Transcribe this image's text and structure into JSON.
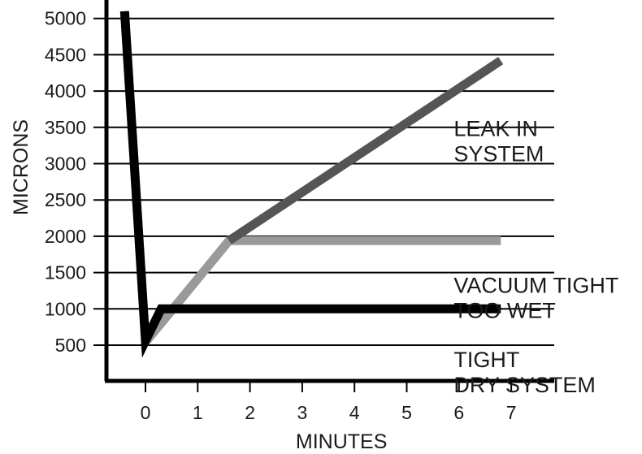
{
  "chart_data": {
    "type": "line",
    "title": "",
    "xlabel": "MINUTES",
    "ylabel": "MICRONS",
    "xlim": [
      -0.8,
      7.8
    ],
    "ylim": [
      0,
      5050
    ],
    "x_ticks": [
      0,
      1,
      2,
      3,
      4,
      5,
      6,
      7
    ],
    "y_ticks": [
      500,
      1000,
      1500,
      2000,
      2500,
      3000,
      3500,
      4000,
      4500,
      5000
    ],
    "grid": "horizontal",
    "series": [
      {
        "color": "#9a9a9a",
        "points": [
          [
            0,
            540
          ],
          [
            1.6,
            1940
          ],
          [
            6.8,
            1940
          ]
        ]
      },
      {
        "color": "#555555",
        "points": [
          [
            1.6,
            1940
          ],
          [
            6.8,
            4420
          ]
        ]
      },
      {
        "color": "#000000",
        "points": [
          [
            -0.4,
            5100
          ],
          [
            0,
            560
          ],
          [
            0.3,
            1000
          ],
          [
            6.8,
            1000
          ]
        ]
      }
    ],
    "annotations": [
      {
        "lines": [
          "LEAK IN",
          "SYSTEM"
        ],
        "x": 5.9,
        "y": 3380
      },
      {
        "lines": [
          "VACUUM TIGHT",
          "TOO WET"
        ],
        "x": 5.9,
        "y": 1220
      },
      {
        "lines": [
          "TIGHT",
          "DRY SYSTEM"
        ],
        "x": 5.9,
        "y": 200
      }
    ]
  }
}
